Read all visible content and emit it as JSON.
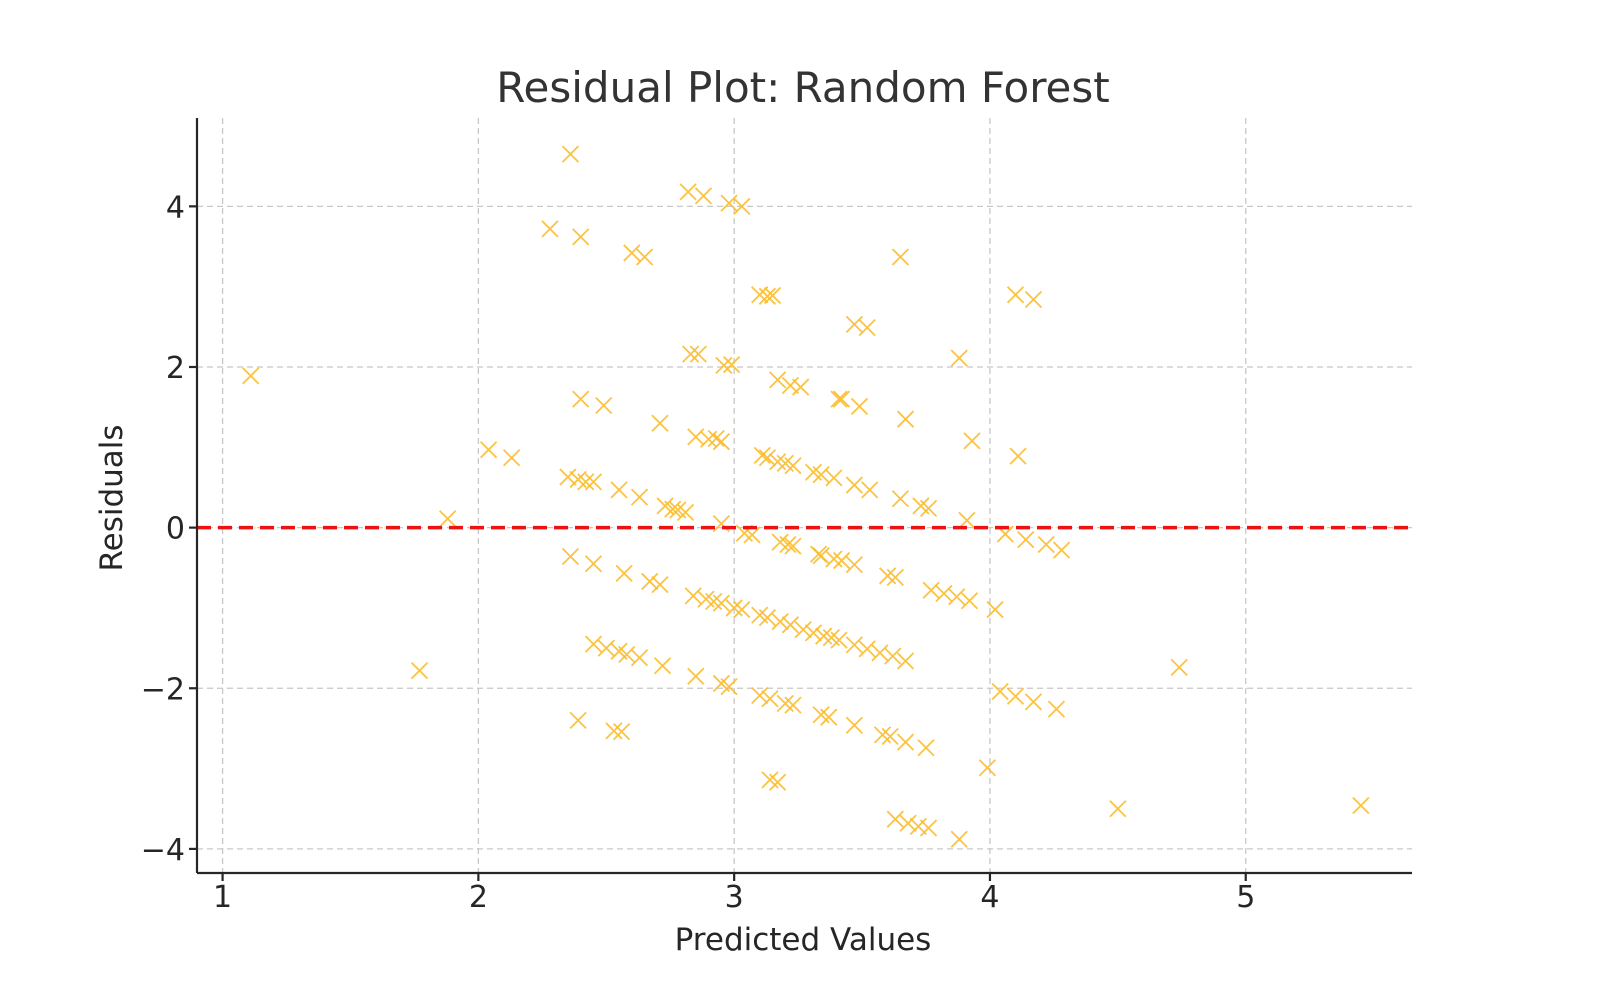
{
  "chart_data": {
    "type": "scatter",
    "title": "Residual Plot: Random Forest",
    "xlabel": "Predicted Values",
    "ylabel": "Residuals",
    "xlim": [
      0.9,
      5.65
    ],
    "ylim": [
      -4.3,
      5.1
    ],
    "x_ticks": [
      1,
      2,
      3,
      4,
      5
    ],
    "y_ticks": [
      -4,
      -2,
      0,
      2,
      4
    ],
    "x_tick_labels": [
      "1",
      "2",
      "3",
      "4",
      "5"
    ],
    "y_tick_labels": [
      "−4",
      "−2",
      "0",
      "2",
      "4"
    ],
    "grid": true,
    "marker": "x",
    "colors": {
      "points": "#fbbd2b",
      "reference_line": "#ee1111"
    },
    "reference_line": {
      "y": 0,
      "style": "dashed"
    },
    "points": [
      [
        2.36,
        4.65
      ],
      [
        2.82,
        4.18
      ],
      [
        2.88,
        4.13
      ],
      [
        2.98,
        4.04
      ],
      [
        3.03,
        4.0
      ],
      [
        2.28,
        3.72
      ],
      [
        2.4,
        3.62
      ],
      [
        2.6,
        3.42
      ],
      [
        2.65,
        3.37
      ],
      [
        3.65,
        3.37
      ],
      [
        4.1,
        2.9
      ],
      [
        4.17,
        2.84
      ],
      [
        3.1,
        2.9
      ],
      [
        3.13,
        2.88
      ],
      [
        3.15,
        2.89
      ],
      [
        3.47,
        2.53
      ],
      [
        3.52,
        2.49
      ],
      [
        2.83,
        2.16
      ],
      [
        2.86,
        2.16
      ],
      [
        2.96,
        2.02
      ],
      [
        2.99,
        2.03
      ],
      [
        3.88,
        2.11
      ],
      [
        1.11,
        1.89
      ],
      [
        3.17,
        1.84
      ],
      [
        3.22,
        1.77
      ],
      [
        3.26,
        1.75
      ],
      [
        3.42,
        1.6
      ],
      [
        3.41,
        1.6
      ],
      [
        3.49,
        1.51
      ],
      [
        2.4,
        1.6
      ],
      [
        2.49,
        1.52
      ],
      [
        3.67,
        1.35
      ],
      [
        2.71,
        1.3
      ],
      [
        2.85,
        1.13
      ],
      [
        2.9,
        1.1
      ],
      [
        2.93,
        1.11
      ],
      [
        2.95,
        1.07
      ],
      [
        3.93,
        1.08
      ],
      [
        2.04,
        0.97
      ],
      [
        2.13,
        0.87
      ],
      [
        4.11,
        0.89
      ],
      [
        3.11,
        0.9
      ],
      [
        3.13,
        0.87
      ],
      [
        3.17,
        0.82
      ],
      [
        3.2,
        0.8
      ],
      [
        3.23,
        0.77
      ],
      [
        3.31,
        0.69
      ],
      [
        3.34,
        0.66
      ],
      [
        3.39,
        0.62
      ],
      [
        3.47,
        0.53
      ],
      [
        3.53,
        0.47
      ],
      [
        2.35,
        0.63
      ],
      [
        2.39,
        0.6
      ],
      [
        2.42,
        0.57
      ],
      [
        2.45,
        0.57
      ],
      [
        2.55,
        0.47
      ],
      [
        2.63,
        0.38
      ],
      [
        2.73,
        0.27
      ],
      [
        2.76,
        0.23
      ],
      [
        2.78,
        0.22
      ],
      [
        2.81,
        0.19
      ],
      [
        3.65,
        0.36
      ],
      [
        3.73,
        0.27
      ],
      [
        3.76,
        0.24
      ],
      [
        1.88,
        0.11
      ],
      [
        2.95,
        0.05
      ],
      [
        3.91,
        0.09
      ],
      [
        3.04,
        -0.07
      ],
      [
        3.07,
        -0.09
      ],
      [
        3.18,
        -0.18
      ],
      [
        3.21,
        -0.21
      ],
      [
        3.23,
        -0.23
      ],
      [
        3.33,
        -0.33
      ],
      [
        3.34,
        -0.35
      ],
      [
        3.39,
        -0.39
      ],
      [
        3.42,
        -0.41
      ],
      [
        3.47,
        -0.46
      ],
      [
        3.6,
        -0.6
      ],
      [
        3.63,
        -0.62
      ],
      [
        4.06,
        -0.08
      ],
      [
        4.14,
        -0.15
      ],
      [
        4.22,
        -0.21
      ],
      [
        4.28,
        -0.28
      ],
      [
        2.36,
        -0.36
      ],
      [
        2.45,
        -0.45
      ],
      [
        2.57,
        -0.57
      ],
      [
        2.67,
        -0.67
      ],
      [
        2.71,
        -0.71
      ],
      [
        3.77,
        -0.78
      ],
      [
        3.82,
        -0.82
      ],
      [
        3.87,
        -0.86
      ],
      [
        3.92,
        -0.91
      ],
      [
        4.02,
        -1.02
      ],
      [
        2.84,
        -0.85
      ],
      [
        2.89,
        -0.89
      ],
      [
        2.92,
        -0.92
      ],
      [
        2.95,
        -0.94
      ],
      [
        3.0,
        -1.0
      ],
      [
        3.03,
        -1.02
      ],
      [
        3.1,
        -1.09
      ],
      [
        3.13,
        -1.12
      ],
      [
        3.18,
        -1.17
      ],
      [
        3.22,
        -1.21
      ],
      [
        3.27,
        -1.27
      ],
      [
        3.31,
        -1.31
      ],
      [
        3.35,
        -1.35
      ],
      [
        3.38,
        -1.37
      ],
      [
        3.41,
        -1.4
      ],
      [
        3.47,
        -1.46
      ],
      [
        3.52,
        -1.51
      ],
      [
        3.57,
        -1.56
      ],
      [
        3.62,
        -1.6
      ],
      [
        3.67,
        -1.66
      ],
      [
        2.45,
        -1.45
      ],
      [
        2.5,
        -1.5
      ],
      [
        2.55,
        -1.54
      ],
      [
        2.58,
        -1.58
      ],
      [
        2.63,
        -1.62
      ],
      [
        2.72,
        -1.72
      ],
      [
        1.77,
        -1.78
      ],
      [
        4.74,
        -1.74
      ],
      [
        2.85,
        -1.85
      ],
      [
        2.95,
        -1.94
      ],
      [
        2.98,
        -1.98
      ],
      [
        3.1,
        -2.09
      ],
      [
        3.14,
        -2.13
      ],
      [
        3.2,
        -2.19
      ],
      [
        3.23,
        -2.21
      ],
      [
        3.34,
        -2.33
      ],
      [
        3.37,
        -2.36
      ],
      [
        3.47,
        -2.46
      ],
      [
        4.04,
        -2.04
      ],
      [
        4.1,
        -2.1
      ],
      [
        4.17,
        -2.17
      ],
      [
        4.26,
        -2.26
      ],
      [
        2.39,
        -2.4
      ],
      [
        2.53,
        -2.53
      ],
      [
        2.56,
        -2.54
      ],
      [
        3.58,
        -2.58
      ],
      [
        3.61,
        -2.6
      ],
      [
        3.67,
        -2.67
      ],
      [
        3.75,
        -2.74
      ],
      [
        3.99,
        -2.99
      ],
      [
        3.14,
        -3.14
      ],
      [
        3.17,
        -3.17
      ],
      [
        4.5,
        -3.5
      ],
      [
        5.45,
        -3.46
      ],
      [
        3.63,
        -3.63
      ],
      [
        3.68,
        -3.68
      ],
      [
        3.72,
        -3.72
      ],
      [
        3.76,
        -3.74
      ],
      [
        3.88,
        -3.88
      ]
    ]
  }
}
